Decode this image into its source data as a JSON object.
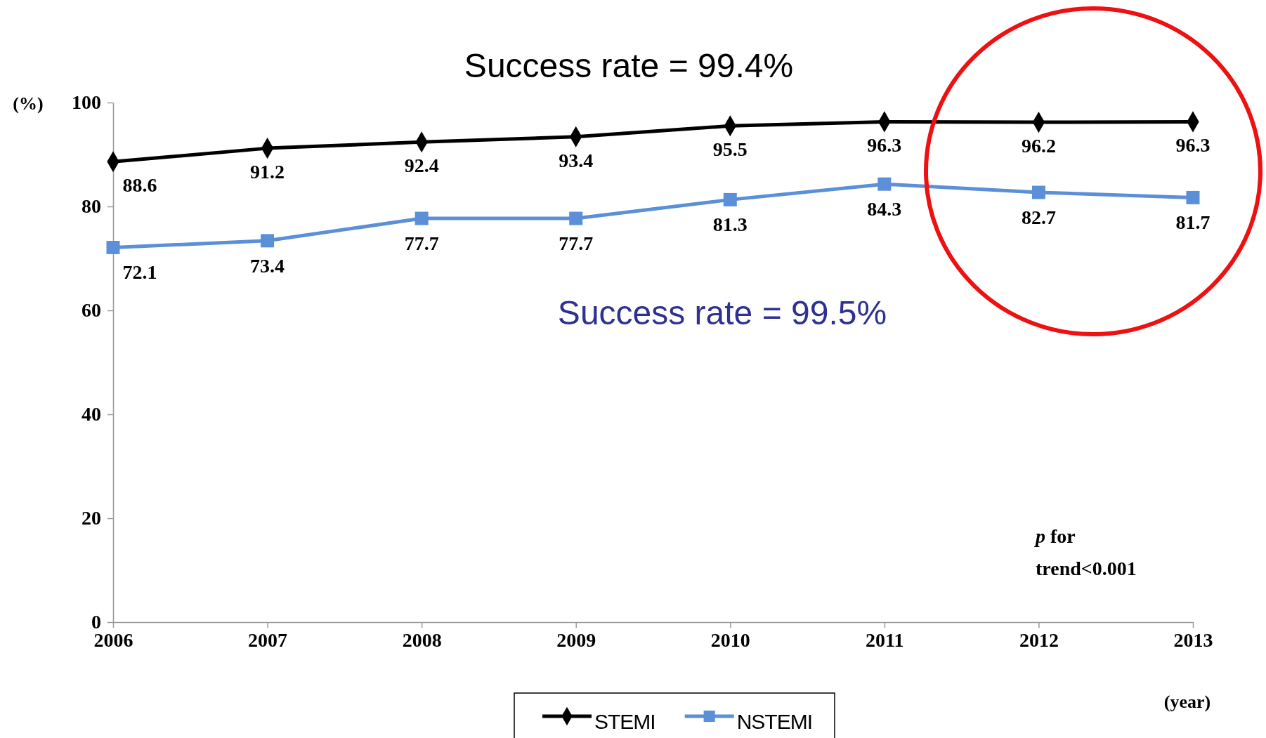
{
  "chart_data": {
    "type": "line",
    "ylabel": "(%)",
    "xlabel": "(year)",
    "x": [
      2006,
      2007,
      2008,
      2009,
      2010,
      2011,
      2012,
      2013
    ],
    "xlim": [
      2006,
      2013
    ],
    "xticks": [
      2006,
      2007,
      2008,
      2009,
      2010,
      2011,
      2012,
      2013
    ],
    "ylim": [
      0,
      100
    ],
    "yticks": [
      0,
      20,
      40,
      60,
      80,
      100
    ],
    "series": [
      {
        "name": "STEMI",
        "color": "#000000",
        "marker": "diamond",
        "values": [
          88.6,
          91.2,
          92.4,
          93.4,
          95.5,
          96.3,
          96.2,
          96.3
        ]
      },
      {
        "name": "NSTEMI",
        "color": "#5b8fd8",
        "marker": "square",
        "values": [
          72.1,
          73.4,
          77.7,
          77.7,
          81.3,
          84.3,
          82.7,
          81.7
        ]
      }
    ],
    "annotations": [
      "Success rate = 99.4%",
      "Success rate = 99.5%",
      "p for trend<0.001"
    ],
    "data_labels": true,
    "grid": false,
    "legend": "bottom",
    "line_style": "solid"
  }
}
